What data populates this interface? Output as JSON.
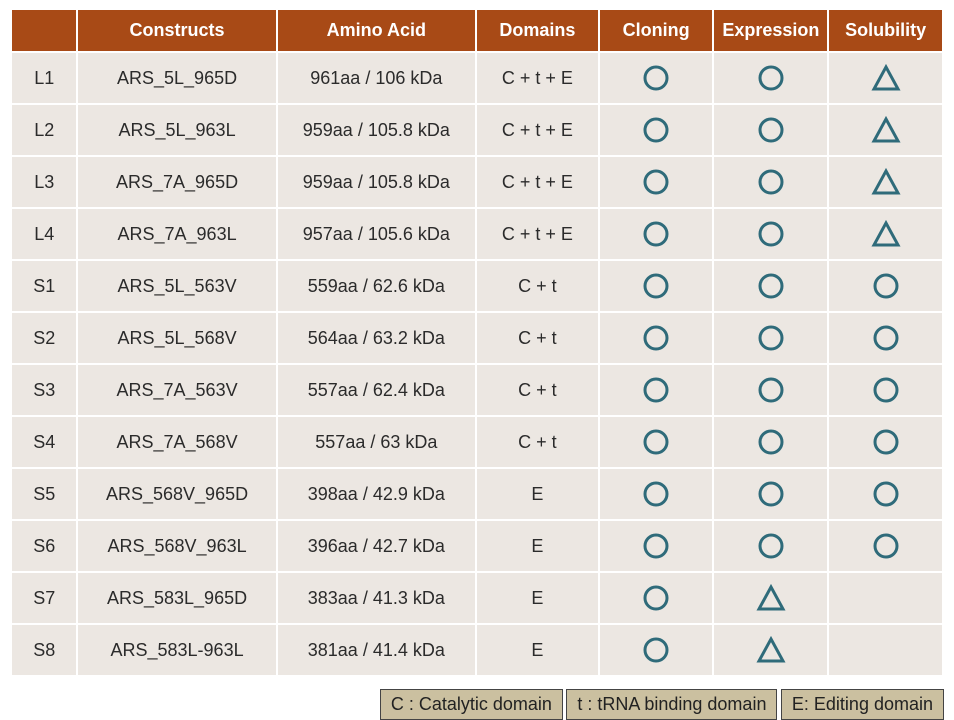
{
  "colors": {
    "header_bg": "#a84a16",
    "header_fg": "#ffffff",
    "row_bg": "#ece7e2",
    "mark_stroke": "#2f6b7a",
    "legend_bg": "#cbc0a0"
  },
  "headers": {
    "id": "",
    "constructs": "Constructs",
    "aa": "Amino Acid",
    "domains": "Domains",
    "cloning": "Cloning",
    "expression": "Expression",
    "solubility": "Solubility"
  },
  "rows": [
    {
      "id": "L1",
      "construct": "ARS_5L_965D",
      "aa": "961aa / 106 kDa",
      "domains": "C + t + E",
      "cloning": "circle",
      "expression": "circle",
      "solubility": "triangle"
    },
    {
      "id": "L2",
      "construct": "ARS_5L_963L",
      "aa": "959aa / 105.8 kDa",
      "domains": "C + t + E",
      "cloning": "circle",
      "expression": "circle",
      "solubility": "triangle"
    },
    {
      "id": "L3",
      "construct": "ARS_7A_965D",
      "aa": "959aa / 105.8 kDa",
      "domains": "C + t + E",
      "cloning": "circle",
      "expression": "circle",
      "solubility": "triangle"
    },
    {
      "id": "L4",
      "construct": "ARS_7A_963L",
      "aa": "957aa / 105.6 kDa",
      "domains": "C + t + E",
      "cloning": "circle",
      "expression": "circle",
      "solubility": "triangle"
    },
    {
      "id": "S1",
      "construct": "ARS_5L_563V",
      "aa": "559aa / 62.6 kDa",
      "domains": "C + t",
      "cloning": "circle",
      "expression": "circle",
      "solubility": "circle"
    },
    {
      "id": "S2",
      "construct": "ARS_5L_568V",
      "aa": "564aa / 63.2 kDa",
      "domains": "C + t",
      "cloning": "circle",
      "expression": "circle",
      "solubility": "circle"
    },
    {
      "id": "S3",
      "construct": "ARS_7A_563V",
      "aa": "557aa / 62.4 kDa",
      "domains": "C + t",
      "cloning": "circle",
      "expression": "circle",
      "solubility": "circle"
    },
    {
      "id": "S4",
      "construct": "ARS_7A_568V",
      "aa": "557aa / 63 kDa",
      "domains": "C + t",
      "cloning": "circle",
      "expression": "circle",
      "solubility": "circle"
    },
    {
      "id": "S5",
      "construct": "ARS_568V_965D",
      "aa": "398aa / 42.9 kDa",
      "domains": "E",
      "cloning": "circle",
      "expression": "circle",
      "solubility": "circle"
    },
    {
      "id": "S6",
      "construct": "ARS_568V_963L",
      "aa": "396aa / 42.7 kDa",
      "domains": "E",
      "cloning": "circle",
      "expression": "circle",
      "solubility": "circle"
    },
    {
      "id": "S7",
      "construct": "ARS_583L_965D",
      "aa": "383aa / 41.3 kDa",
      "domains": "E",
      "cloning": "circle",
      "expression": "triangle",
      "solubility": ""
    },
    {
      "id": "S8",
      "construct": "ARS_583L-963L",
      "aa": "381aa / 41.4 kDa",
      "domains": "E",
      "cloning": "circle",
      "expression": "triangle",
      "solubility": ""
    }
  ],
  "legend": {
    "c": "C : Catalytic domain",
    "t": "t : tRNA binding domain",
    "e": "E: Editing domain"
  }
}
